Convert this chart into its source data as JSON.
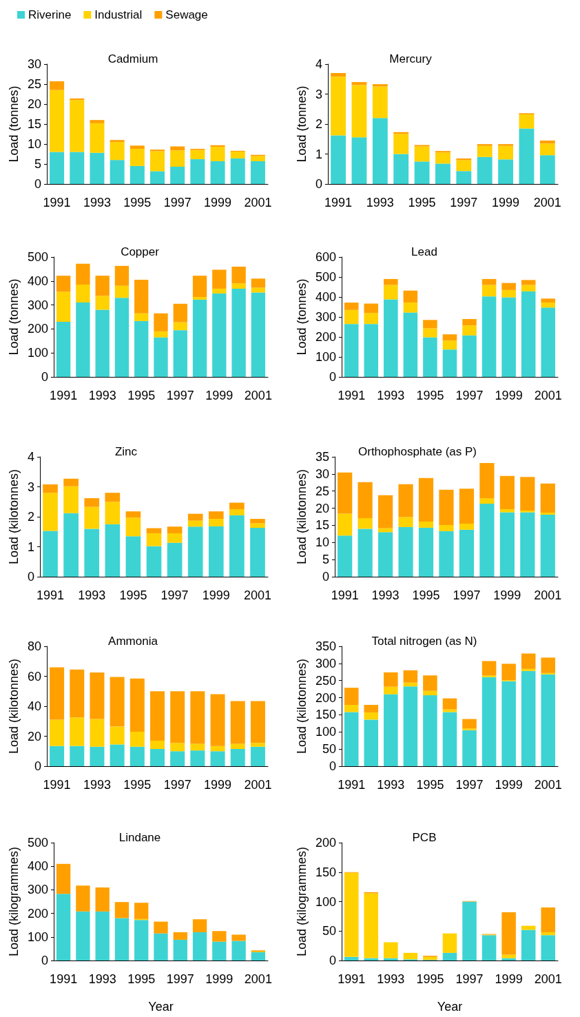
{
  "chart_data": [
    {
      "type": "bar",
      "stacked": true,
      "title": "Cadmium",
      "ylabel": "Load (tonnes)",
      "legend": "top left",
      "grid": false,
      "categories": [
        "1991",
        null,
        "1993",
        null,
        "1995",
        null,
        "1997",
        null,
        "1999",
        null,
        "2001"
      ],
      "ylim": [
        0,
        30
      ],
      "yticks": [
        0,
        5,
        10,
        15,
        20,
        25,
        30
      ],
      "series": [
        {
          "name": "Riverine",
          "color": "#3dd3d3",
          "values": [
            8,
            8,
            7.8,
            6,
            4.5,
            3.2,
            4.3,
            6.2,
            5.7,
            6.4,
            5.7
          ]
        },
        {
          "name": "Industrial",
          "color": "#ffd200",
          "values": [
            15.5,
            13,
            7.4,
            4.5,
            4.3,
            5,
            4.1,
            2.3,
            3.6,
            1.7,
            1.3
          ]
        },
        {
          "name": "Sewage",
          "color": "#ffa000",
          "values": [
            2.2,
            0.4,
            0.8,
            0.5,
            0.8,
            0.4,
            1,
            0.3,
            0.4,
            0.2,
            0.3
          ]
        }
      ]
    },
    {
      "type": "bar",
      "stacked": true,
      "title": "Mercury",
      "ylabel": "Load (tonnes)",
      "grid": false,
      "categories": [
        "1991",
        null,
        "1993",
        null,
        "1995",
        null,
        "1997",
        null,
        "1999",
        null,
        "2001"
      ],
      "ylim": [
        0,
        4
      ],
      "yticks": [
        0,
        1,
        2,
        3,
        4
      ],
      "series": [
        {
          "color": "#3dd3d3",
          "values": [
            1.62,
            1.56,
            2.2,
            1,
            0.75,
            0.68,
            0.43,
            0.9,
            0.82,
            1.85,
            0.96
          ]
        },
        {
          "color": "#ffd200",
          "values": [
            1.96,
            1.74,
            1.05,
            0.67,
            0.5,
            0.37,
            0.37,
            0.37,
            0.45,
            0.47,
            0.39
          ]
        },
        {
          "color": "#ffa000",
          "values": [
            0.12,
            0.1,
            0.08,
            0.06,
            0.05,
            0.05,
            0.05,
            0.06,
            0.06,
            0.04,
            0.1
          ]
        }
      ]
    },
    {
      "type": "bar",
      "stacked": true,
      "title": "Copper",
      "ylabel": "Load (tonnes)",
      "grid": false,
      "categories": [
        "1991",
        null,
        "1993",
        null,
        "1995",
        null,
        "1997",
        null,
        "1999",
        null,
        "2001"
      ],
      "ylim": [
        0,
        500
      ],
      "yticks": [
        0,
        100,
        200,
        300,
        400,
        500
      ],
      "series": [
        {
          "color": "#3dd3d3",
          "values": [
            230,
            310,
            280,
            330,
            233,
            165,
            195,
            322,
            348,
            368,
            352
          ]
        },
        {
          "color": "#ffd200",
          "values": [
            125,
            75,
            58,
            50,
            32,
            25,
            33,
            11,
            20,
            22,
            20
          ]
        },
        {
          "color": "#ffa000",
          "values": [
            67,
            87,
            84,
            83,
            140,
            75,
            77,
            89,
            79,
            70,
            38
          ]
        }
      ]
    },
    {
      "type": "bar",
      "stacked": true,
      "title": "Lead",
      "ylabel": "Load (tonnes)",
      "grid": false,
      "categories": [
        "1991",
        null,
        "1993",
        null,
        "1995",
        null,
        "1997",
        null,
        "1999",
        null,
        "2001"
      ],
      "ylim": [
        0,
        600
      ],
      "yticks": [
        0,
        100,
        200,
        300,
        400,
        500,
        600
      ],
      "series": [
        {
          "color": "#3dd3d3",
          "values": [
            265,
            265,
            388,
            322,
            198,
            137,
            208,
            403,
            398,
            428,
            347
          ]
        },
        {
          "color": "#ffd200",
          "values": [
            70,
            55,
            72,
            50,
            45,
            45,
            50,
            57,
            37,
            32,
            25
          ]
        },
        {
          "color": "#ffa000",
          "values": [
            37,
            47,
            30,
            60,
            42,
            31,
            32,
            30,
            35,
            25,
            20
          ]
        }
      ]
    },
    {
      "type": "bar",
      "stacked": true,
      "title": "Zinc",
      "ylabel": "Load (kilotonnes)",
      "grid": false,
      "categories": [
        "1991",
        null,
        "1993",
        null,
        "1995",
        null,
        "1997",
        null,
        "1999",
        null,
        "2001"
      ],
      "ylim": [
        0,
        4
      ],
      "yticks": [
        0,
        1,
        2,
        3,
        4
      ],
      "series": [
        {
          "color": "#3dd3d3",
          "values": [
            1.53,
            2.12,
            1.6,
            1.75,
            1.35,
            1.02,
            1.13,
            1.67,
            1.68,
            2.05,
            1.63
          ]
        },
        {
          "color": "#ffd200",
          "values": [
            1.27,
            0.9,
            0.73,
            0.75,
            0.62,
            0.43,
            0.32,
            0.2,
            0.25,
            0.2,
            0.15
          ]
        },
        {
          "color": "#ffa000",
          "values": [
            0.28,
            0.25,
            0.29,
            0.3,
            0.21,
            0.17,
            0.22,
            0.23,
            0.25,
            0.22,
            0.15
          ]
        }
      ]
    },
    {
      "type": "bar",
      "stacked": true,
      "title": "Orthophosphate (as P)",
      "ylabel": "Load (kilotonnes)",
      "grid": false,
      "categories": [
        "1991",
        null,
        "1993",
        null,
        "1995",
        null,
        "1997",
        null,
        "1999",
        null,
        "2001"
      ],
      "ylim": [
        0,
        35
      ],
      "yticks": [
        0,
        5,
        10,
        15,
        20,
        25,
        30,
        35
      ],
      "series": [
        {
          "color": "#3dd3d3",
          "values": [
            12,
            14,
            13,
            14.5,
            14.3,
            13.3,
            13.7,
            21.3,
            18.8,
            18.8,
            18.1
          ]
        },
        {
          "color": "#ffd200",
          "values": [
            6.4,
            3.1,
            1.2,
            2.9,
            1.8,
            1.8,
            1.8,
            1.6,
            0.9,
            0.5,
            0.6
          ]
        },
        {
          "color": "#ffa000",
          "values": [
            12,
            10.5,
            9.6,
            9.6,
            12.7,
            10.3,
            10.2,
            10.3,
            9.7,
            9.8,
            8.5
          ]
        }
      ]
    },
    {
      "type": "bar",
      "stacked": true,
      "title": "Ammonia",
      "ylabel": "Load (kilotonnes)",
      "grid": false,
      "categories": [
        "1991",
        null,
        "1993",
        null,
        "1995",
        null,
        "1997",
        null,
        "1999",
        null,
        "2001"
      ],
      "ylim": [
        0,
        80
      ],
      "yticks": [
        0,
        20,
        40,
        60,
        80
      ],
      "series": [
        {
          "color": "#3dd3d3",
          "values": [
            13.5,
            13.5,
            13,
            14.5,
            13,
            11.5,
            10,
            10.5,
            10,
            11.5,
            13
          ]
        },
        {
          "color": "#ffd200",
          "values": [
            17.5,
            19,
            18.5,
            12,
            10,
            5.5,
            5.5,
            4.5,
            3.5,
            3.5,
            2.5
          ]
        },
        {
          "color": "#ffa000",
          "values": [
            35,
            32,
            31,
            33,
            35.5,
            33,
            34.5,
            35,
            34.5,
            28.5,
            28
          ]
        }
      ]
    },
    {
      "type": "bar",
      "stacked": true,
      "title": "Total nitrogen (as N)",
      "ylabel": "Load (kilotonnes)",
      "grid": false,
      "categories": [
        "1991",
        null,
        "1993",
        null,
        "1995",
        null,
        "1997",
        null,
        "1999",
        null,
        "2001"
      ],
      "ylim": [
        0,
        350
      ],
      "yticks": [
        0,
        50,
        100,
        150,
        200,
        250,
        300,
        350
      ],
      "series": [
        {
          "color": "#3dd3d3",
          "values": [
            158,
            136,
            210,
            233,
            207,
            158,
            105,
            260,
            248,
            278,
            268
          ]
        },
        {
          "color": "#ffd200",
          "values": [
            21,
            21,
            22,
            11,
            13,
            8,
            5,
            5,
            3,
            6,
            4
          ]
        },
        {
          "color": "#ffa000",
          "values": [
            50,
            22,
            42,
            36,
            45,
            32,
            28,
            42,
            48,
            45,
            45
          ]
        }
      ]
    },
    {
      "type": "bar",
      "stacked": true,
      "title": "Lindane",
      "ylabel": "Load (kilogrammes)",
      "xlabel": "Year",
      "grid": false,
      "categories": [
        "1991",
        null,
        "1993",
        null,
        "1995",
        null,
        "1997",
        null,
        "1999",
        null,
        "2001"
      ],
      "ylim": [
        0,
        500
      ],
      "yticks": [
        0,
        100,
        200,
        300,
        400,
        500
      ],
      "series": [
        {
          "color": "#3dd3d3",
          "values": [
            283,
            208,
            208,
            180,
            172,
            115,
            88,
            120,
            80,
            83,
            35
          ]
        },
        {
          "color": "#ffd200",
          "values": [
            0,
            0,
            0,
            0,
            4,
            0,
            0,
            0,
            0,
            0,
            3
          ]
        },
        {
          "color": "#ffa000",
          "values": [
            127,
            110,
            102,
            68,
            69,
            50,
            32,
            55,
            45,
            27,
            5
          ]
        }
      ]
    },
    {
      "type": "bar",
      "stacked": true,
      "title": "PCB",
      "ylabel": "Load (kilogrammes)",
      "xlabel": "Year",
      "grid": false,
      "categories": [
        "1991",
        null,
        "1993",
        null,
        "1995",
        null,
        "1997",
        null,
        "1999",
        null,
        "2001"
      ],
      "ylim": [
        0,
        200
      ],
      "yticks": [
        0,
        50,
        100,
        150,
        200
      ],
      "series": [
        {
          "color": "#3dd3d3",
          "values": [
            6,
            4,
            4,
            2,
            1,
            13,
            100,
            43,
            4,
            52,
            43
          ]
        },
        {
          "color": "#ffd200",
          "values": [
            143,
            110,
            27,
            11,
            5,
            33,
            0,
            1,
            6,
            7,
            5
          ]
        },
        {
          "color": "#ffa000",
          "values": [
            1,
            2,
            0,
            0,
            2,
            0,
            1,
            1,
            72,
            0,
            42
          ]
        }
      ]
    }
  ]
}
